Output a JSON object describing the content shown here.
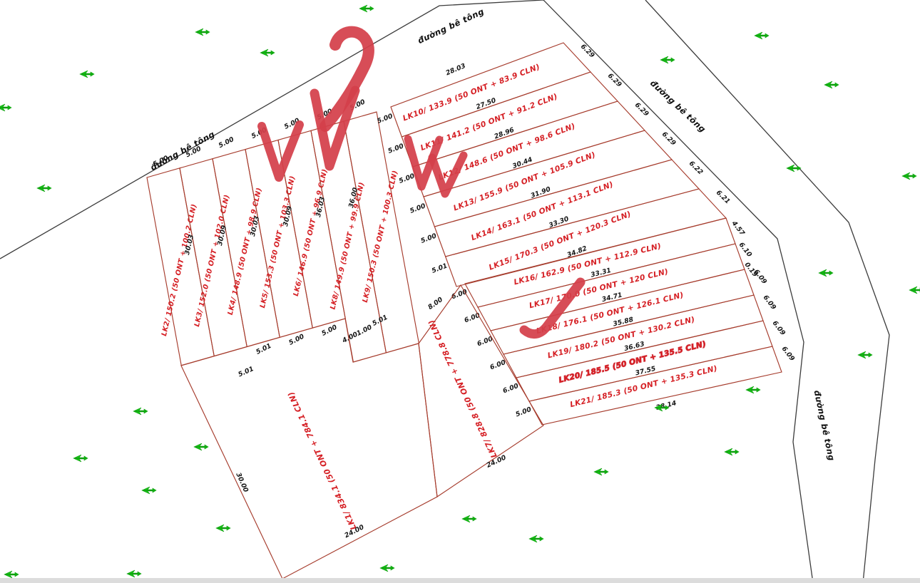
{
  "road": {
    "label": "đường bê tông"
  },
  "left_block": {
    "parcels": [
      {
        "id": "LK2",
        "label": "LK2/ 150.2 (50 ONT + 100.2 CLN)"
      },
      {
        "id": "LK3",
        "label": "LK3/ 152.0 (50 ONT + 102.0 CLN)"
      },
      {
        "id": "LK4",
        "label": "LK4/ 148.9 (50 ONT + 98.9 CLN)"
      },
      {
        "id": "LK5",
        "label": "LK5/ 153.3 (50 ONT + 103.3 CLN)"
      },
      {
        "id": "LK6",
        "label": "LK6/ 146.9 (50 ONT + 96.9 CLN)"
      },
      {
        "id": "LK8",
        "label": "LK8/ 149.9 (50 ONT + 99.9 CLN)"
      },
      {
        "id": "LK9",
        "label": "LK9/ 150.3 (50 ONT + 100.3 CLN)"
      }
    ],
    "top_edge_dims": [
      "5.00",
      "5.00",
      "5.00",
      "5.00",
      "5.00",
      "5.00",
      "5.00"
    ],
    "side_dims": [
      "30.03",
      "30.09",
      "30.03",
      "30.09",
      "36.03",
      "36.00"
    ],
    "bottom_edge_dims": [
      "5.01",
      "5.00",
      "5.00",
      "4.00",
      "1.00",
      "5.01"
    ]
  },
  "right_top_block": {
    "top_edge_dim": "28.03",
    "parcels": [
      {
        "id": "LK10",
        "label": "LK10/ 133.9 (50 ONT + 83.9 CLN)",
        "boundary_dim": "27.50"
      },
      {
        "id": "LK11",
        "label": "LK11/ 141.2 (50 ONT + 91.2 CLN)",
        "boundary_dim": "28.96"
      },
      {
        "id": "LK12",
        "label": "LK12/ 148.6 (50 ONT + 98.6 CLN)",
        "boundary_dim": "30.44"
      },
      {
        "id": "LK13",
        "label": "LK13/ 155.9 (50 ONT + 105.9 CLN)",
        "boundary_dim": "31.90"
      },
      {
        "id": "LK14",
        "label": "LK14/ 163.1 (50 ONT + 113.1 CLN)",
        "boundary_dim": "33.30"
      },
      {
        "id": "LK15",
        "label": "LK15/ 170.3 (50 ONT + 120.3 CLN)",
        "boundary_dim": "34.82"
      }
    ],
    "left_edge_dims": [
      "5.00",
      "5.00",
      "5.00",
      "5.00",
      "5.00",
      "5.01"
    ],
    "right_edge_dims": [
      "6.29",
      "6.29",
      "6.29",
      "6.29",
      "6.22",
      "6.21"
    ]
  },
  "right_bottom_block": {
    "parcels": [
      {
        "id": "LK16",
        "label": "LK16/ 162.9 (50 ONT + 112.9 CLN)",
        "boundary_dim": "33.31",
        "marked": false
      },
      {
        "id": "LK17",
        "label": "LK17/ 170.0 (50 ONT + 120 CLN)",
        "boundary_dim": "34.71",
        "marked": false
      },
      {
        "id": "LK18",
        "label": "LK18/ 176.1 (50 ONT + 126.1 CLN)",
        "boundary_dim": "35.88",
        "marked": false
      },
      {
        "id": "LK19",
        "label": "LK19/ 180.2 (50 ONT + 130.2 CLN)",
        "boundary_dim": "36.63",
        "marked": false
      },
      {
        "id": "LK20",
        "label": "LK20/ 185.5 (50 ONT + 135.5 CLN)",
        "boundary_dim": "37.55",
        "marked": true
      },
      {
        "id": "LK21",
        "label": "LK21/ 185.3 (50 ONT + 135.3 CLN)",
        "boundary_dim": "38.14",
        "marked": false
      }
    ],
    "left_edge_dims": [
      "6.00",
      "6.00",
      "6.00",
      "6.00",
      "6.00",
      "5.00"
    ],
    "right_edge_dims": [
      "6.09",
      "6.09",
      "6.09",
      "6.09"
    ],
    "bend_dims": [
      "4.57",
      "6.10",
      "0.19"
    ]
  },
  "large_parcels": [
    {
      "id": "LK7",
      "label": "LK7/ 828.8 (50 ONT + 778.8 CLN)",
      "top_dim": "8.00",
      "bottom_dim": "24.00"
    },
    {
      "id": "LK1",
      "label": "LK1/ 834.1 (50 ONT + 784.1 CLN)",
      "left_dim": "30.00",
      "corner_dim": "5.01",
      "bottom_dim": "24.00"
    }
  ],
  "annotations": {
    "pen_color": "#d4404a",
    "checkmark_count": 6,
    "emphasized_parcel": "LK20"
  },
  "trees": {
    "icon": "tree-icon",
    "count": 28,
    "color": "#17c517"
  },
  "colors": {
    "parcel_line": "#a63c2d",
    "parcel_text": "#d51f24",
    "dim_text": "#161616",
    "road_line": "#3c3c3c",
    "pen": "#d4404a",
    "tree_green": "#17c517"
  }
}
